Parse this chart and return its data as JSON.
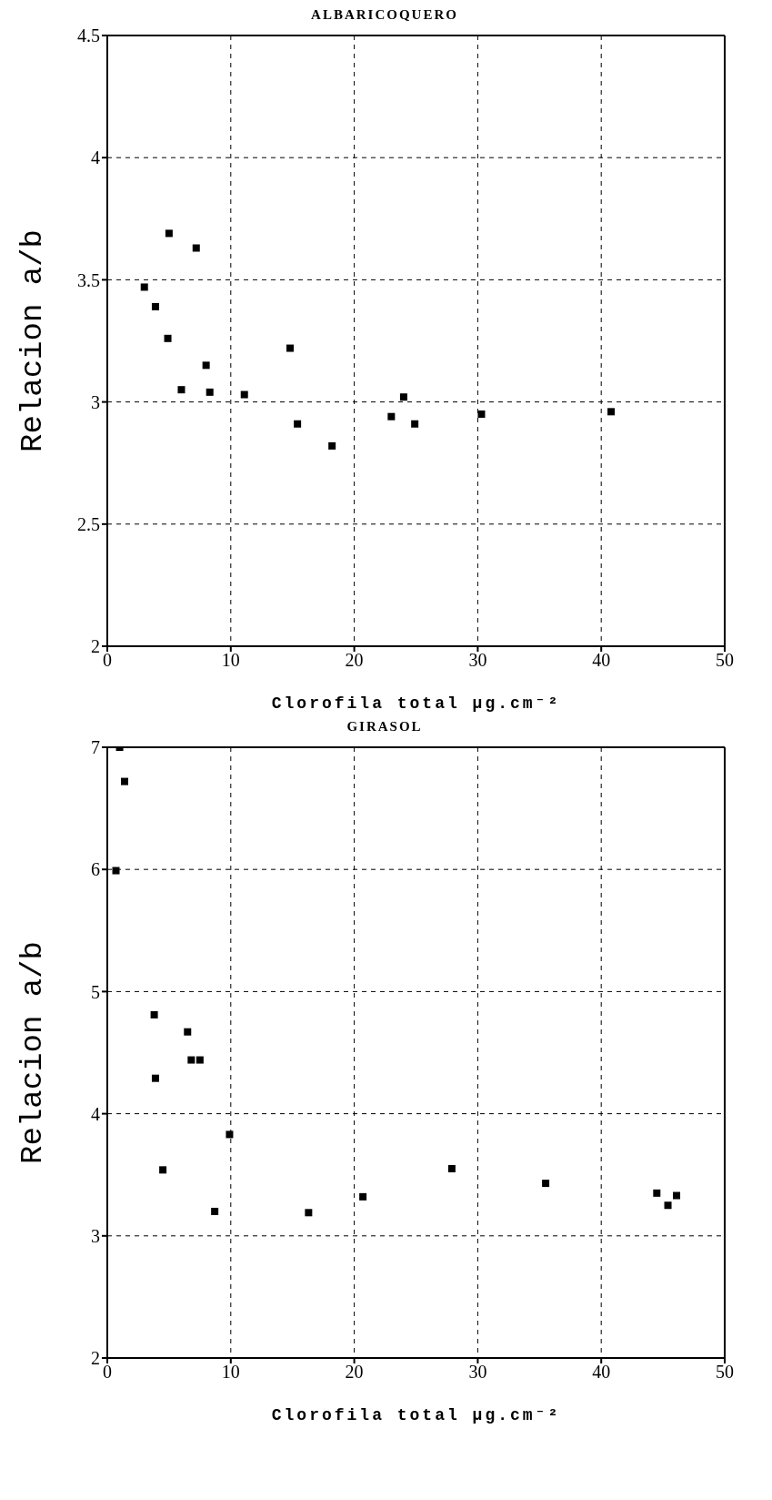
{
  "chart_data": [
    {
      "type": "scatter",
      "title": "ALBARICOQUERO",
      "xlabel": "Clorofila total µg.cm⁻²",
      "ylabel": "Relacion a/b",
      "x": [
        3.0,
        3.9,
        5.0,
        4.9,
        7.2,
        6.0,
        8.0,
        8.3,
        11.1,
        14.8,
        15.4,
        18.2,
        23.0,
        24.0,
        24.9,
        30.3,
        40.8
      ],
      "values": [
        3.47,
        3.39,
        3.69,
        3.26,
        3.63,
        3.05,
        3.15,
        3.04,
        3.03,
        3.22,
        2.91,
        2.82,
        2.94,
        3.02,
        2.91,
        2.95,
        2.96
      ],
      "color": "#000000",
      "marker": "square",
      "xlim": [
        0,
        50
      ],
      "xticks": [
        0,
        10,
        20,
        30,
        40,
        50
      ],
      "ylim": [
        2,
        4.5
      ],
      "yticks": [
        2,
        2.5,
        3,
        3.5,
        4,
        4.5
      ],
      "grid": true
    },
    {
      "type": "scatter",
      "title": "GIRASOL",
      "xlabel": "Clorofila total µg.cm⁻²",
      "ylabel": "Relacion a/b",
      "x": [
        1.0,
        1.4,
        0.7,
        3.8,
        6.5,
        6.8,
        7.5,
        3.9,
        9.9,
        4.5,
        8.7,
        16.3,
        20.7,
        27.9,
        35.5,
        44.5,
        45.4,
        46.1
      ],
      "values": [
        7.0,
        6.72,
        5.99,
        4.81,
        4.67,
        4.44,
        4.44,
        4.29,
        3.83,
        3.54,
        3.2,
        3.19,
        3.32,
        3.55,
        3.43,
        3.35,
        3.25,
        3.33
      ],
      "color": "#000000",
      "marker": "square",
      "xlim": [
        0,
        50
      ],
      "xticks": [
        0,
        10,
        20,
        30,
        40,
        50
      ],
      "ylim": [
        2,
        7
      ],
      "yticks": [
        2,
        3,
        4,
        5,
        6,
        7
      ],
      "grid": true
    }
  ]
}
